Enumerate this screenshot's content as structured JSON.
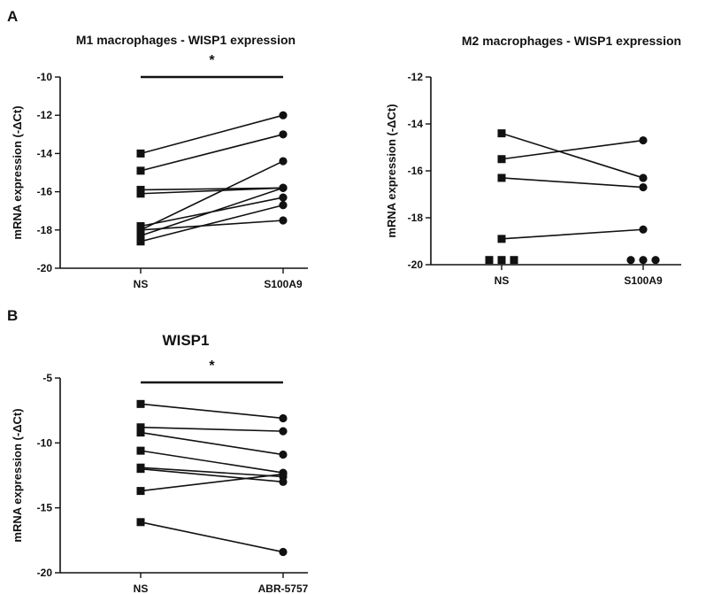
{
  "panels": {
    "a_label": "A",
    "b_label": "B"
  },
  "chart_data": [
    {
      "type": "scatter",
      "panel": "A",
      "title": "M1 macrophages - WISP1 expression",
      "xlabel": "",
      "ylabel": "mRNA expression (-ΔCt)",
      "categories": [
        "NS",
        "S100A9"
      ],
      "ylim": [
        -20,
        -10
      ],
      "yticks": [
        -10,
        -12,
        -14,
        -16,
        -18,
        -20
      ],
      "significance": "*",
      "markers": [
        "square",
        "circle"
      ],
      "pairs": [
        [
          -14.0,
          -12.0
        ],
        [
          -14.9,
          -13.0
        ],
        [
          -15.9,
          -15.8
        ],
        [
          -16.1,
          -15.8
        ],
        [
          -17.8,
          -16.3
        ],
        [
          -18.0,
          -14.4
        ],
        [
          -18.3,
          -15.8
        ],
        [
          -18.6,
          -16.7
        ],
        [
          -18.0,
          -17.5
        ]
      ]
    },
    {
      "type": "scatter",
      "panel": "A",
      "title": "M2 macrophages - WISP1 expression",
      "xlabel": "",
      "ylabel": "mRNA expression (-ΔCt)",
      "categories": [
        "NS",
        "S100A9"
      ],
      "ylim": [
        -20,
        -12
      ],
      "yticks": [
        -12,
        -14,
        -16,
        -18,
        -20
      ],
      "significance": "",
      "markers": [
        "square",
        "circle"
      ],
      "pairs": [
        [
          -14.4,
          -16.3
        ],
        [
          -15.5,
          -14.7
        ],
        [
          -16.3,
          -16.7
        ],
        [
          -18.9,
          -18.5
        ]
      ],
      "unpaired_at_floor": {
        "NS": [
          -19.8,
          -19.8,
          -19.8
        ],
        "S100A9": [
          -19.8,
          -19.8,
          -19.8
        ]
      }
    },
    {
      "type": "scatter",
      "panel": "B",
      "title": "WISP1",
      "xlabel": "",
      "ylabel": "mRNA expression (-ΔCt)",
      "categories": [
        "NS",
        "ABR-5757"
      ],
      "ylim": [
        -20,
        -5
      ],
      "yticks": [
        -5,
        -10,
        -15,
        -20
      ],
      "significance": "*",
      "markers": [
        "square",
        "circle"
      ],
      "pairs": [
        [
          -7.0,
          -8.1
        ],
        [
          -8.8,
          -9.1
        ],
        [
          -9.2,
          -10.9
        ],
        [
          -10.6,
          -12.3
        ],
        [
          -11.9,
          -12.6
        ],
        [
          -12.0,
          -13.0
        ],
        [
          -13.7,
          -12.4
        ],
        [
          -16.1,
          -18.4
        ]
      ]
    }
  ]
}
